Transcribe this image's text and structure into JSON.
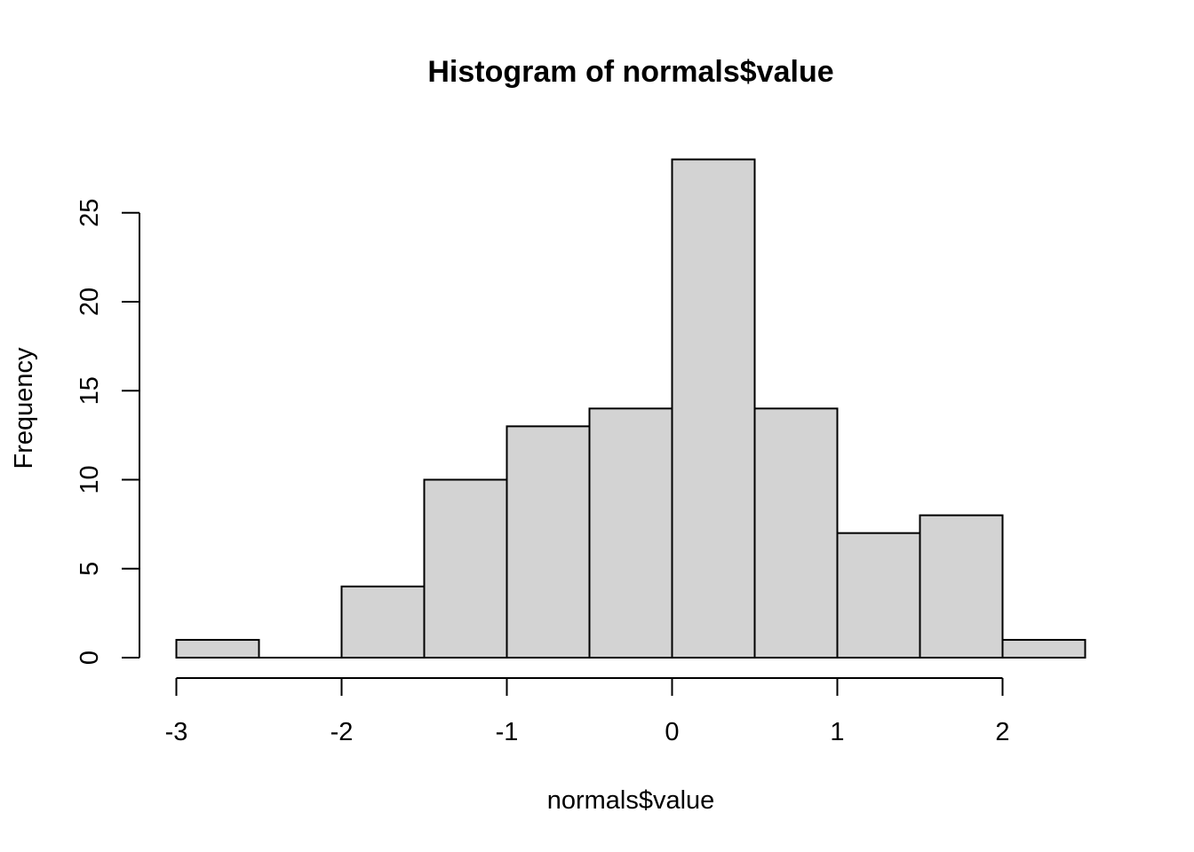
{
  "chart_data": {
    "type": "bar",
    "title": "Histogram of normals$value",
    "xlabel": "normals$value",
    "ylabel": "Frequency",
    "bins": [
      {
        "x0": -3.0,
        "x1": -2.5,
        "count": 1
      },
      {
        "x0": -2.5,
        "x1": -2.0,
        "count": 0
      },
      {
        "x0": -2.0,
        "x1": -1.5,
        "count": 4
      },
      {
        "x0": -1.5,
        "x1": -1.0,
        "count": 10
      },
      {
        "x0": -1.0,
        "x1": -0.5,
        "count": 13
      },
      {
        "x0": -0.5,
        "x1": 0.0,
        "count": 14
      },
      {
        "x0": 0.0,
        "x1": 0.5,
        "count": 28
      },
      {
        "x0": 0.5,
        "x1": 1.0,
        "count": 14
      },
      {
        "x0": 1.0,
        "x1": 1.5,
        "count": 7
      },
      {
        "x0": 1.5,
        "x1": 2.0,
        "count": 8
      },
      {
        "x0": 2.0,
        "x1": 2.5,
        "count": 1
      }
    ],
    "x_ticks": [
      -3,
      -2,
      -1,
      0,
      1,
      2
    ],
    "y_ticks": [
      0,
      5,
      10,
      15,
      20,
      25
    ],
    "bar_color": "#d3d3d3",
    "grid": false
  }
}
